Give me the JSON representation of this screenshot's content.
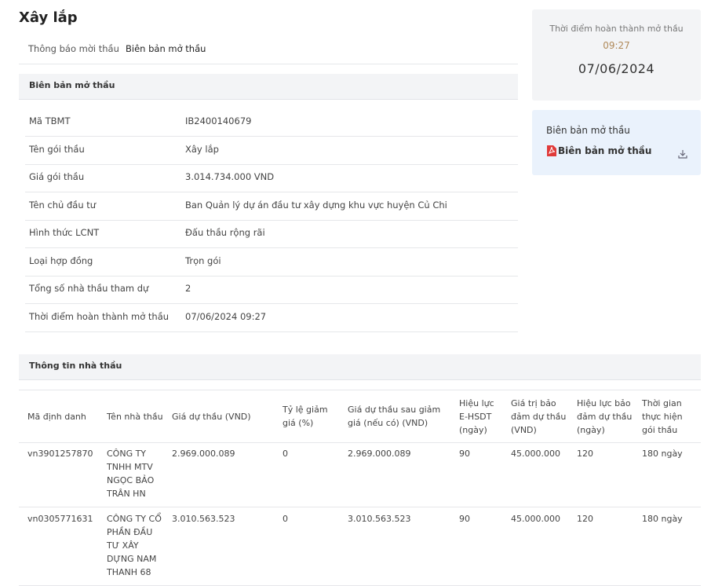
{
  "header": {
    "title": "Xây lắp"
  },
  "tabs": [
    "Thông báo mời thầu",
    "Biên bản mở thầu"
  ],
  "summary": {
    "section_title": "Biên bản mở thầu",
    "rows": [
      [
        "Mã TBMT",
        "IB2400140679"
      ],
      [
        "Tên gói thầu",
        "Xây lắp"
      ],
      [
        "Giá gói thầu",
        "3.014.734.000 VND"
      ],
      [
        "Tên chủ đầu tư",
        "Ban Quản lý dự án đầu tư xây dựng khu vực huyện Củ Chi"
      ],
      [
        "Hình thức LCNT",
        "Đấu thầu rộng rãi"
      ],
      [
        "Loại hợp đồng",
        "Trọn gói"
      ],
      [
        "Tổng số nhà thầu tham dự",
        "2"
      ],
      [
        "Thời điểm hoàn thành mở thầu",
        "07/06/2024 09:27"
      ]
    ]
  },
  "sidebar": {
    "time_label": "Thời điểm hoàn thành mở thầu",
    "time": "09:27",
    "date": "07/06/2024",
    "doc_title": "Biên bản mở thầu",
    "doc_link": "Biên bản mở thầu"
  },
  "bidders": {
    "section_title": "Thông tin nhà thầu",
    "columns": [
      "Mã định danh",
      "Tên nhà thầu",
      "Giá dự thầu (VND)",
      "Tỷ lệ giảm giá (%)",
      "Giá dự thầu sau giảm giá (nếu có) (VND)",
      "Hiệu lực E-HSDT (ngày)",
      "Giá trị bảo đảm dự thầu (VND)",
      "Hiệu lực bảo đảm dự thầu (ngày)",
      "Thời gian thực hiện gói thầu"
    ],
    "rows": [
      [
        "vn3901257870",
        "CÔNG TY TNHH MTV NGỌC BẢO TRÂN HN",
        "2.969.000.089",
        "0",
        "2.969.000.089",
        "90",
        "45.000.000",
        "120",
        "180 ngày"
      ],
      [
        "vn0305771631",
        "CÔNG TY CỔ PHẦN ĐẦU TƯ XÂY DỰNG NAM THANH 68",
        "3.010.563.523",
        "0",
        "3.010.563.523",
        "90",
        "45.000.000",
        "120",
        "180 ngày"
      ]
    ]
  }
}
